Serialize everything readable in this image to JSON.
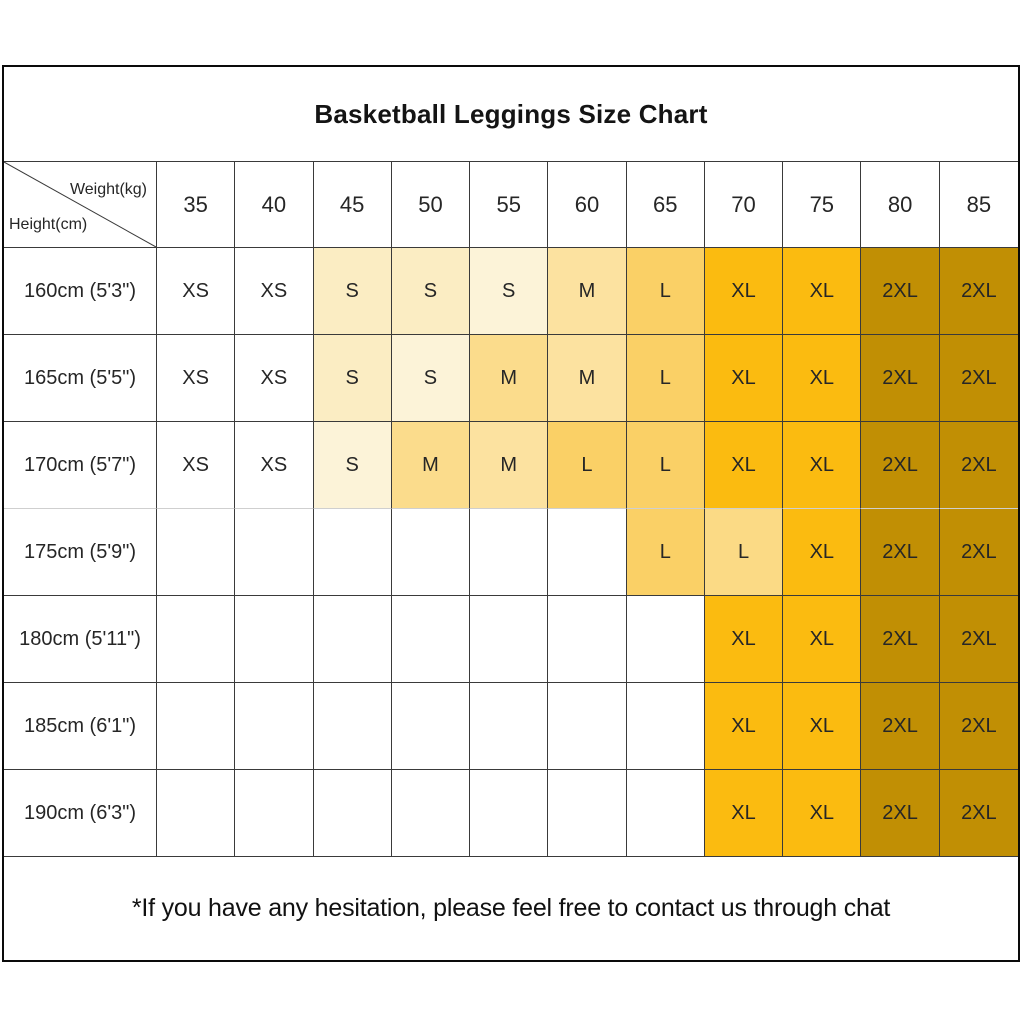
{
  "title": "Basketball Leggings Size Chart",
  "corner": {
    "top_label": "Weight(kg)",
    "bottom_label": "Height(cm)"
  },
  "weights": [
    "35",
    "40",
    "45",
    "50",
    "55",
    "60",
    "65",
    "70",
    "75",
    "80",
    "85"
  ],
  "palette": {
    "xs": "#FFFFFF",
    "s": "#FBEDC3",
    "s2": "#FCF3D8",
    "m": "#FBDC8C",
    "m2": "#FCE2A0",
    "l": "#FAD066",
    "l2": "#FBDA85",
    "xl": "#FBBB10",
    "x2": "#C18F04",
    "e": "#FFFFFF"
  },
  "colors": {
    "outer_border": "#0A0A0A",
    "grid_line_dark": "#3A3A3A",
    "grid_line_light": "#CFCFCF",
    "text": "#262626"
  },
  "rows": [
    {
      "height": "160cm (5'3\")",
      "cells": [
        {
          "label": "XS",
          "tone": "xs"
        },
        {
          "label": "XS",
          "tone": "xs"
        },
        {
          "label": "S",
          "tone": "s"
        },
        {
          "label": "S",
          "tone": "s"
        },
        {
          "label": "S",
          "tone": "s2"
        },
        {
          "label": "M",
          "tone": "m2"
        },
        {
          "label": "L",
          "tone": "l"
        },
        {
          "label": "XL",
          "tone": "xl"
        },
        {
          "label": "XL",
          "tone": "xl"
        },
        {
          "label": "2XL",
          "tone": "x2"
        },
        {
          "label": "2XL",
          "tone": "x2"
        }
      ]
    },
    {
      "height": "165cm (5'5\")",
      "cells": [
        {
          "label": "XS",
          "tone": "xs"
        },
        {
          "label": "XS",
          "tone": "xs"
        },
        {
          "label": "S",
          "tone": "s"
        },
        {
          "label": "S",
          "tone": "s2"
        },
        {
          "label": "M",
          "tone": "m"
        },
        {
          "label": "M",
          "tone": "m2"
        },
        {
          "label": "L",
          "tone": "l"
        },
        {
          "label": "XL",
          "tone": "xl"
        },
        {
          "label": "XL",
          "tone": "xl"
        },
        {
          "label": "2XL",
          "tone": "x2"
        },
        {
          "label": "2XL",
          "tone": "x2"
        }
      ]
    },
    {
      "height": "170cm (5'7\")",
      "cells": [
        {
          "label": "XS",
          "tone": "xs"
        },
        {
          "label": "XS",
          "tone": "xs"
        },
        {
          "label": "S",
          "tone": "s2"
        },
        {
          "label": "M",
          "tone": "m"
        },
        {
          "label": "M",
          "tone": "m2"
        },
        {
          "label": "L",
          "tone": "l"
        },
        {
          "label": "L",
          "tone": "l"
        },
        {
          "label": "XL",
          "tone": "xl"
        },
        {
          "label": "XL",
          "tone": "xl"
        },
        {
          "label": "2XL",
          "tone": "x2"
        },
        {
          "label": "2XL",
          "tone": "x2"
        }
      ]
    },
    {
      "height": "175cm (5'9\")",
      "cells": [
        {
          "label": "",
          "tone": "e"
        },
        {
          "label": "",
          "tone": "e"
        },
        {
          "label": "",
          "tone": "e"
        },
        {
          "label": "",
          "tone": "e"
        },
        {
          "label": "",
          "tone": "e"
        },
        {
          "label": "",
          "tone": "e"
        },
        {
          "label": "L",
          "tone": "l"
        },
        {
          "label": "L",
          "tone": "l2"
        },
        {
          "label": "XL",
          "tone": "xl"
        },
        {
          "label": "2XL",
          "tone": "x2"
        },
        {
          "label": "2XL",
          "tone": "x2"
        }
      ]
    },
    {
      "height": "180cm (5'11\")",
      "cells": [
        {
          "label": "",
          "tone": "e"
        },
        {
          "label": "",
          "tone": "e"
        },
        {
          "label": "",
          "tone": "e"
        },
        {
          "label": "",
          "tone": "e"
        },
        {
          "label": "",
          "tone": "e"
        },
        {
          "label": "",
          "tone": "e"
        },
        {
          "label": "",
          "tone": "e"
        },
        {
          "label": "XL",
          "tone": "xl"
        },
        {
          "label": "XL",
          "tone": "xl"
        },
        {
          "label": "2XL",
          "tone": "x2"
        },
        {
          "label": "2XL",
          "tone": "x2"
        }
      ]
    },
    {
      "height": "185cm (6'1\")",
      "cells": [
        {
          "label": "",
          "tone": "e"
        },
        {
          "label": "",
          "tone": "e"
        },
        {
          "label": "",
          "tone": "e"
        },
        {
          "label": "",
          "tone": "e"
        },
        {
          "label": "",
          "tone": "e"
        },
        {
          "label": "",
          "tone": "e"
        },
        {
          "label": "",
          "tone": "e"
        },
        {
          "label": "XL",
          "tone": "xl"
        },
        {
          "label": "XL",
          "tone": "xl"
        },
        {
          "label": "2XL",
          "tone": "x2"
        },
        {
          "label": "2XL",
          "tone": "x2"
        }
      ]
    },
    {
      "height": "190cm (6'3\")",
      "cells": [
        {
          "label": "",
          "tone": "e"
        },
        {
          "label": "",
          "tone": "e"
        },
        {
          "label": "",
          "tone": "e"
        },
        {
          "label": "",
          "tone": "e"
        },
        {
          "label": "",
          "tone": "e"
        },
        {
          "label": "",
          "tone": "e"
        },
        {
          "label": "",
          "tone": "e"
        },
        {
          "label": "XL",
          "tone": "xl"
        },
        {
          "label": "XL",
          "tone": "xl"
        },
        {
          "label": "2XL",
          "tone": "x2"
        },
        {
          "label": "2XL",
          "tone": "x2"
        }
      ]
    }
  ],
  "footer": "*If you have any hesitation, please feel free to contact us through chat"
}
